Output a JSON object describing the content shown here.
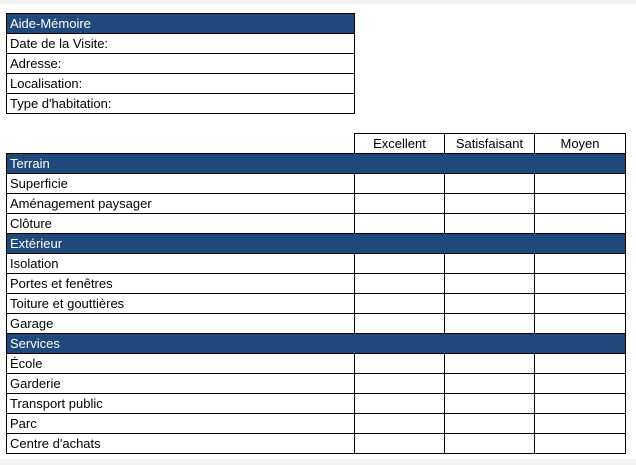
{
  "colors": {
    "header_bg": "#1f497d",
    "header_text": "#ffffff"
  },
  "memo": {
    "title": "Aide-Mémoire",
    "fields": [
      "Date de la Visite:",
      "Adresse:",
      "Localisation:",
      "Type d'habitation:"
    ]
  },
  "grid": {
    "columns": [
      "Excellent",
      "Satisfaisant",
      "Moyen"
    ],
    "sections": [
      {
        "title": "Terrain",
        "items": [
          "Superficie",
          "Aménagement paysager",
          "Clôture"
        ]
      },
      {
        "title": "Extérieur",
        "items": [
          "Isolation",
          "Portes et fenêtres",
          "Toiture et gouttières",
          "Garage"
        ]
      },
      {
        "title": "Services",
        "items": [
          "École",
          "Garderie",
          "Transport public",
          "Parc",
          "Centre d'achats"
        ]
      }
    ]
  }
}
